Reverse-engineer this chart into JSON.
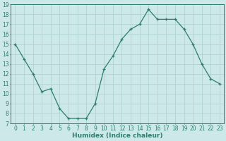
{
  "x": [
    0,
    1,
    2,
    3,
    4,
    5,
    6,
    7,
    8,
    9,
    10,
    11,
    12,
    13,
    14,
    15,
    16,
    17,
    18,
    19,
    20,
    21,
    22,
    23
  ],
  "y": [
    15,
    13.5,
    12,
    10.2,
    10.5,
    8.5,
    7.5,
    7.5,
    7.5,
    9.0,
    12.5,
    13.8,
    15.5,
    16.5,
    17.0,
    18.5,
    17.5,
    17.5,
    17.5,
    16.5,
    15.0,
    13.0,
    11.5,
    11.0
  ],
  "line_color": "#2e7d6e",
  "marker": "+",
  "marker_size": 3,
  "bg_color": "#cce8e8",
  "grid_color": "#aacfcf",
  "xlabel": "Humidex (Indice chaleur)",
  "ylim": [
    7,
    19
  ],
  "xlim_min": -0.5,
  "xlim_max": 23.5,
  "yticks": [
    7,
    8,
    9,
    10,
    11,
    12,
    13,
    14,
    15,
    16,
    17,
    18,
    19
  ],
  "xticks": [
    0,
    1,
    2,
    3,
    4,
    5,
    6,
    7,
    8,
    9,
    10,
    11,
    12,
    13,
    14,
    15,
    16,
    17,
    18,
    19,
    20,
    21,
    22,
    23
  ],
  "tick_fontsize": 5.5,
  "xlabel_fontsize": 6.5
}
